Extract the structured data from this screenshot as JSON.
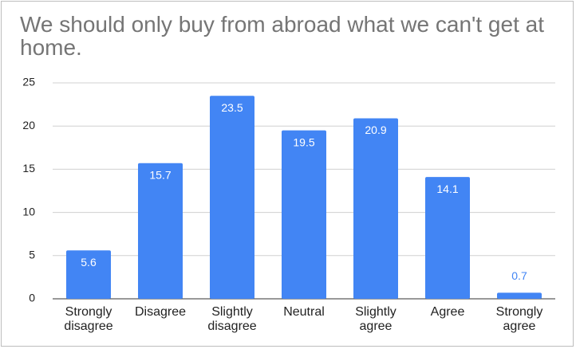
{
  "chart_data": {
    "type": "bar",
    "title": "We should only buy from abroad what we can't get at home.",
    "categories": [
      "Strongly disagree",
      "Disagree",
      "Slightly disagree",
      "Neutral",
      "Slightly agree",
      "Agree",
      "Strongly agree"
    ],
    "values": [
      5.6,
      15.7,
      23.5,
      19.5,
      20.9,
      14.1,
      0.7
    ],
    "color": "#4285f4",
    "ylim": [
      0,
      25
    ],
    "yticks": [
      0,
      5,
      10,
      15,
      20,
      25
    ],
    "grid": true
  }
}
